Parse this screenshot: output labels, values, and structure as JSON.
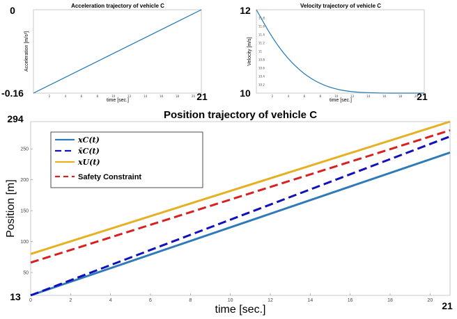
{
  "chart_data": [
    {
      "type": "line",
      "title": "Acceleration trajectory of vehicle C",
      "xlabel": "time [sec.]",
      "ylabel": "Acceleration  [m/s²]",
      "x": [
        0,
        21
      ],
      "series": [
        {
          "values": [
            -0.16,
            0
          ]
        }
      ],
      "xlim": [
        0,
        21
      ],
      "ylim": [
        -0.16,
        0
      ],
      "end_labels": {
        "y_top": "0",
        "y_bottom": "-0.16",
        "x_right": "21"
      },
      "grid": false,
      "color": "#1f77b4"
    },
    {
      "type": "line",
      "title": "Velocity trajectory of vehicle C",
      "xlabel": "time [sec.]",
      "ylabel": "Velocity [m/s]",
      "x": [
        0,
        2,
        4,
        6,
        8,
        10,
        12,
        14,
        16,
        18,
        20,
        21
      ],
      "series": [
        {
          "values": [
            12,
            11.32,
            10.81,
            10.45,
            10.22,
            10.09,
            10.03,
            10.01,
            10.0,
            10.0,
            10.0,
            10.0
          ]
        }
      ],
      "xlim": [
        0,
        21
      ],
      "ylim": [
        10,
        12
      ],
      "end_labels": {
        "y_top": "12",
        "y_bottom": "10",
        "x_right": "21"
      },
      "grid": false,
      "color": "#1f77b4"
    },
    {
      "type": "line",
      "title": "Position trajectory of vehicle C",
      "xlabel": "time [sec.]",
      "ylabel": "Position [m]",
      "x": [
        0,
        21
      ],
      "xlim": [
        0,
        21
      ],
      "ylim": [
        13,
        294
      ],
      "xticks": [
        "0",
        "2",
        "4",
        "6",
        "8",
        "10",
        "12",
        "14",
        "16",
        "18",
        "20"
      ],
      "yticks": [
        "50",
        "100",
        "150",
        "200",
        "250"
      ],
      "end_labels": {
        "y_top": "294",
        "y_bottom": "13",
        "x_right": "21"
      },
      "legend_position": "top-left",
      "grid": false,
      "series": [
        {
          "name": "x_C(t)",
          "legend_label": "𝒙𝑪(𝒕)",
          "values": [
            13,
            244
          ],
          "color": "#2f7ab8",
          "dash": "solid"
        },
        {
          "name": "x̄_C(t)",
          "legend_label": "𝒙̄𝑪(𝒕)",
          "values": [
            13,
            270
          ],
          "color": "#1111bb",
          "dash": "dashed"
        },
        {
          "name": "x_U(t)",
          "legend_label": "𝒙𝑼(𝒕)",
          "values": [
            80,
            294
          ],
          "color": "#e6b020",
          "dash": "solid"
        },
        {
          "name": "Safety Constraint",
          "legend_label": "Safety Constraint",
          "values": [
            66,
            280
          ],
          "color": "#d92020",
          "dash": "dashed"
        }
      ]
    }
  ]
}
